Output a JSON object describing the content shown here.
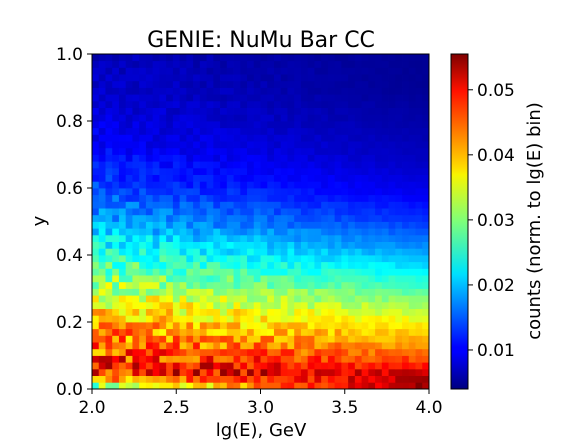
{
  "chart_data": {
    "type": "heatmap",
    "title": "GENIE: NuMu Bar CC",
    "xlabel": "lg(E), GeV",
    "ylabel": "y",
    "xlim": [
      2.0,
      4.0
    ],
    "ylim": [
      0.0,
      1.0
    ],
    "x_ticks": [
      "2.0",
      "2.5",
      "3.0",
      "3.5",
      "4.0"
    ],
    "y_ticks": [
      "0.0",
      "0.2",
      "0.4",
      "0.6",
      "0.8",
      "1.0"
    ],
    "x_bins": 50,
    "y_bins": 50,
    "colormap": "jet",
    "colorbar": {
      "label": "counts (norm. to lg(E) bin)",
      "range": [
        0.004,
        0.0555
      ],
      "ticks": [
        "0.01",
        "0.02",
        "0.03",
        "0.04",
        "0.05"
      ]
    },
    "intensity_profile_by_y": [
      {
        "y": 0.01,
        "low_E": 0.03,
        "high_E": 0.055
      },
      {
        "y": 0.05,
        "low_E": 0.049,
        "high_E": 0.051
      },
      {
        "y": 0.1,
        "low_E": 0.046,
        "high_E": 0.044
      },
      {
        "y": 0.2,
        "low_E": 0.04,
        "high_E": 0.036
      },
      {
        "y": 0.3,
        "low_E": 0.033,
        "high_E": 0.027
      },
      {
        "y": 0.4,
        "low_E": 0.026,
        "high_E": 0.019
      },
      {
        "y": 0.5,
        "low_E": 0.019,
        "high_E": 0.013
      },
      {
        "y": 0.6,
        "low_E": 0.014,
        "high_E": 0.009
      },
      {
        "y": 0.7,
        "low_E": 0.011,
        "high_E": 0.007
      },
      {
        "y": 0.8,
        "low_E": 0.009,
        "high_E": 0.006
      },
      {
        "y": 0.9,
        "low_E": 0.008,
        "high_E": 0.005
      },
      {
        "y": 1.0,
        "low_E": 0.007,
        "high_E": 0.005
      }
    ]
  }
}
